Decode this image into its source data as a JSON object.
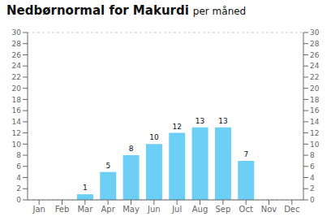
{
  "chart_data": {
    "type": "bar",
    "title": "Nedbørnormal for Makurdi",
    "subtitle": "per måned",
    "categories": [
      "Jan",
      "Feb",
      "Mar",
      "Apr",
      "May",
      "Jun",
      "Jul",
      "Aug",
      "Sep",
      "Oct",
      "Nov",
      "Dec"
    ],
    "values": [
      0,
      0,
      1,
      5,
      8,
      10,
      12,
      13,
      13,
      7,
      0,
      0
    ],
    "color": "#6dcff6",
    "ylim": [
      0,
      30
    ],
    "yticks": [
      0,
      2,
      4,
      6,
      8,
      10,
      12,
      14,
      16,
      18,
      20,
      22,
      24,
      26,
      28,
      30
    ],
    "y2lim": [
      0,
      30
    ],
    "y2ticks": [
      0,
      2,
      4,
      6,
      8,
      10,
      12,
      14,
      16,
      18,
      20,
      22,
      24,
      26,
      28,
      30
    ],
    "grid": true,
    "data_labels": true
  }
}
